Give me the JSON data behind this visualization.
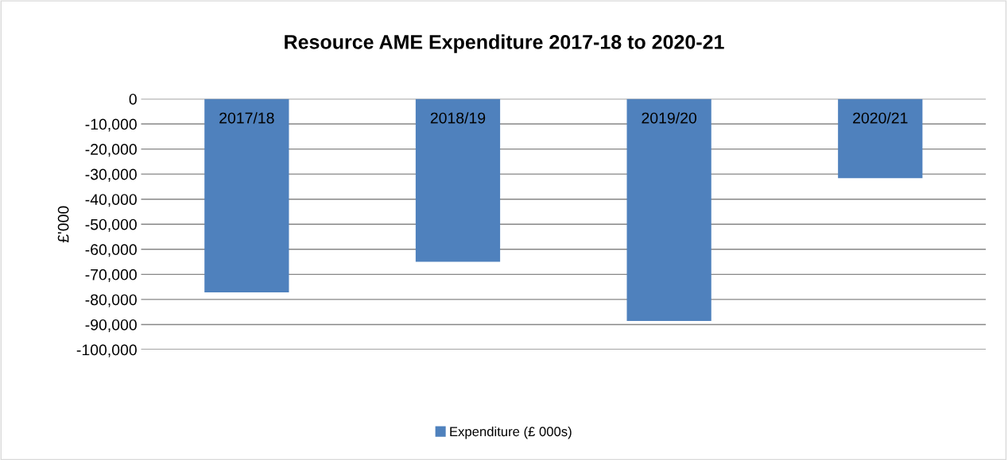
{
  "chart_data": {
    "type": "bar",
    "title": "Resource AME Expenditure 2017-18 to 2020-21",
    "ylabel": "£'000",
    "categories": [
      "2017/18",
      "2018/19",
      "2019/20",
      "2020/21"
    ],
    "series": [
      {
        "name": "Expenditure (£ 000s)",
        "color": "#4f81bd",
        "values": [
          -77200,
          -65000,
          -88600,
          -31600
        ]
      }
    ],
    "ylim": [
      -100000,
      0
    ],
    "yticks": [
      {
        "value": -100000,
        "label": "-100,000"
      },
      {
        "value": -90000,
        "label": "-90,000"
      },
      {
        "value": -80000,
        "label": "-80,000"
      },
      {
        "value": -70000,
        "label": "-70,000"
      },
      {
        "value": -60000,
        "label": "-60,000"
      },
      {
        "value": -50000,
        "label": "-50,000"
      },
      {
        "value": -40000,
        "label": "-40,000"
      },
      {
        "value": -30000,
        "label": "-30,000"
      },
      {
        "value": -20000,
        "label": "-20,000"
      },
      {
        "value": -10000,
        "label": "-10,000"
      },
      0
    ],
    "grid": "y",
    "legend": "bottom"
  }
}
